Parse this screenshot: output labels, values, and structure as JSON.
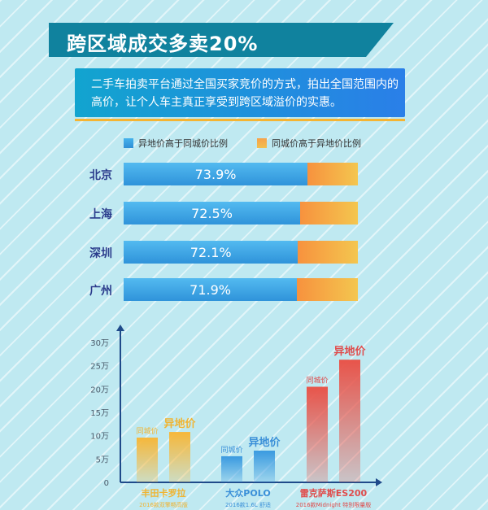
{
  "header": {
    "title": "跨区域成交多卖20%"
  },
  "description": "二手车拍卖平台通过全国买家竞价的方式，拍出全国范围内的高价，让个人车主真正享受到跨区域溢价的实惠。",
  "colors": {
    "title_bg": "#10829e",
    "blue": "#3aa3e4",
    "orange": "#f4a842",
    "red": "#e8544a",
    "city_label": "#2b3c8c"
  },
  "chart_data": [
    {
      "type": "bar",
      "orientation": "horizontal",
      "stacked": true,
      "legend": [
        "异地价高于同城价比例",
        "同城价高于异地价比例"
      ],
      "categories": [
        "北京",
        "上海",
        "深圳",
        "广州"
      ],
      "series": [
        {
          "name": "异地价高于同城价比例",
          "values": [
            73.9,
            72.5,
            72.1,
            71.9
          ],
          "labels": [
            "73.9%",
            "72.5%",
            "72.1%",
            "71.9%"
          ]
        },
        {
          "name": "同城价高于异地价比例",
          "values": [
            26.1,
            27.5,
            27.9,
            28.1
          ]
        }
      ]
    },
    {
      "type": "bar",
      "orientation": "vertical",
      "ylim": [
        0,
        30
      ],
      "yticks": [
        0,
        5,
        10,
        15,
        20,
        25,
        30
      ],
      "ytick_labels": [
        "0",
        "5万",
        "10万",
        "15万",
        "20万",
        "25万",
        "30万"
      ],
      "groups": [
        {
          "name": "丰田卡罗拉",
          "sub": "2016款双擎畅高版",
          "color": "#f0b432",
          "bars": [
            {
              "label": "同城价",
              "value": 9.6
            },
            {
              "label": "异地价",
              "value": 10.8
            }
          ]
        },
        {
          "name": "大众POLO",
          "sub": "2016款1.6L 舒适",
          "color": "#3a8fd8",
          "bars": [
            {
              "label": "同城价",
              "value": 5.6
            },
            {
              "label": "异地价",
              "value": 6.8
            }
          ]
        },
        {
          "name": "雷克萨斯ES200",
          "sub": "2016款Midnight 特别限量版",
          "color": "#e04c4c",
          "bars": [
            {
              "label": "同城价",
              "value": 20.5
            },
            {
              "label": "异地价",
              "value": 26.3
            }
          ]
        }
      ]
    }
  ]
}
